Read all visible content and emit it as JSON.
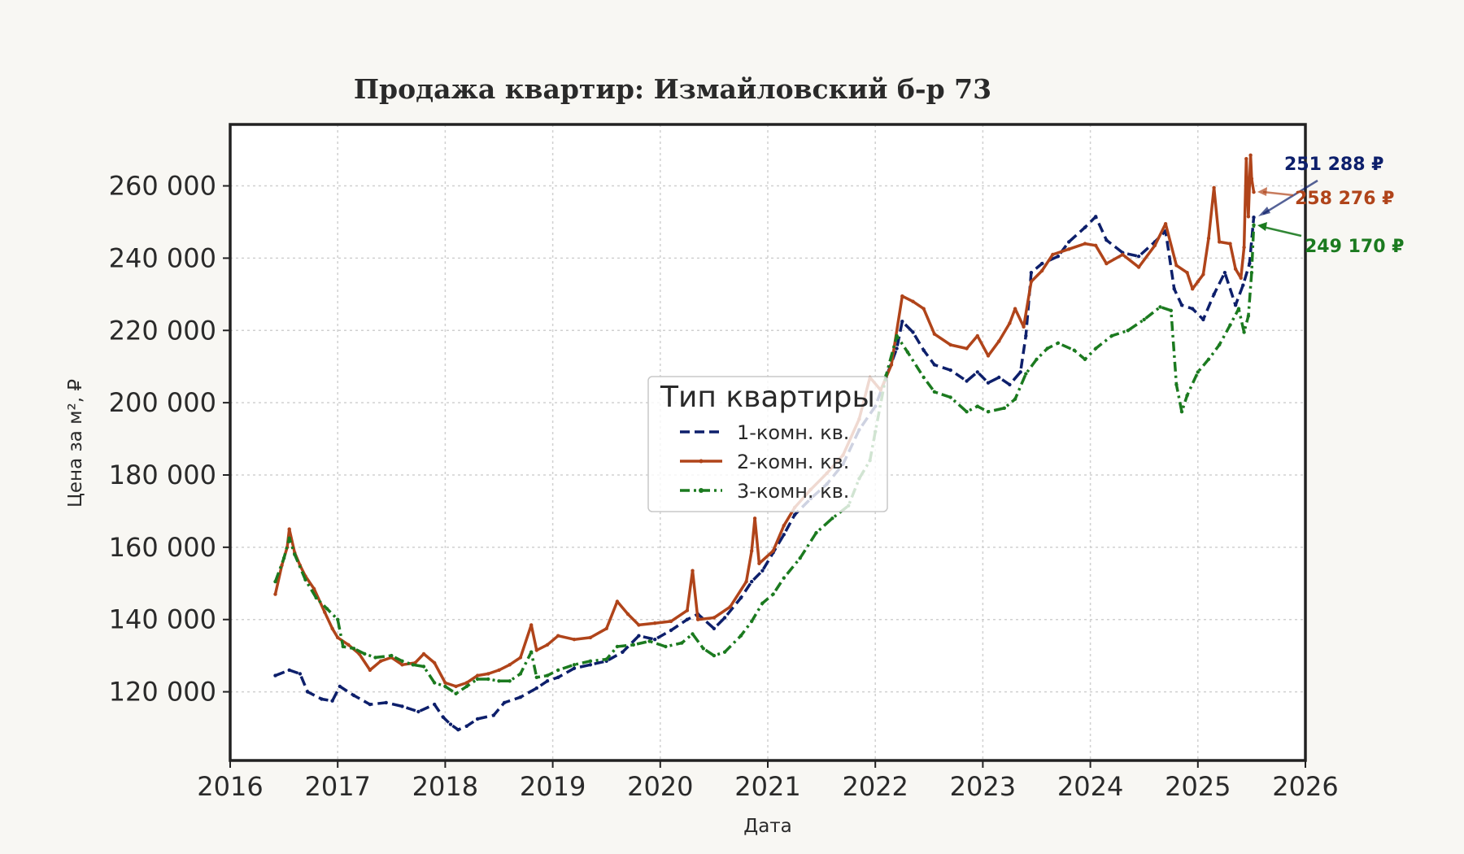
{
  "chart_data": {
    "type": "line",
    "title": "Продажа квартир: Измайловский б-р 73",
    "xlabel": "Дата",
    "ylabel": "Цена за м², ₽",
    "xlim": [
      2016.0,
      2026.0
    ],
    "ylim": [
      101000,
      277000
    ],
    "x_ticks": [
      "2016",
      "2017",
      "2018",
      "2019",
      "2020",
      "2021",
      "2022",
      "2023",
      "2024",
      "2025",
      "2026"
    ],
    "y_ticks": [
      {
        "value": 120000,
        "label": "120 000"
      },
      {
        "value": 140000,
        "label": "140 000"
      },
      {
        "value": 160000,
        "label": "160 000"
      },
      {
        "value": 180000,
        "label": "180 000"
      },
      {
        "value": 200000,
        "label": "200 000"
      },
      {
        "value": 220000,
        "label": "220 000"
      },
      {
        "value": 240000,
        "label": "240 000"
      },
      {
        "value": 260000,
        "label": "260 000"
      }
    ],
    "grid": true,
    "legend": {
      "title": "Тип квартиры",
      "position": "center"
    },
    "series": [
      {
        "name": "1-комн. кв.",
        "color": "#0d1f6b",
        "style": "dashed",
        "points": [
          [
            2016.42,
            124500
          ],
          [
            2016.55,
            126000
          ],
          [
            2016.65,
            125000
          ],
          [
            2016.72,
            120000
          ],
          [
            2016.85,
            118000
          ],
          [
            2016.95,
            117500
          ],
          [
            2017.02,
            121500
          ],
          [
            2017.15,
            119000
          ],
          [
            2017.3,
            116500
          ],
          [
            2017.45,
            117000
          ],
          [
            2017.6,
            116000
          ],
          [
            2017.75,
            114500
          ],
          [
            2017.9,
            116500
          ],
          [
            2017.98,
            113000
          ],
          [
            2018.05,
            111000
          ],
          [
            2018.12,
            109500
          ],
          [
            2018.2,
            110500
          ],
          [
            2018.3,
            112500
          ],
          [
            2018.45,
            113500
          ],
          [
            2018.55,
            117000
          ],
          [
            2018.7,
            118500
          ],
          [
            2018.85,
            121000
          ],
          [
            2018.95,
            123000
          ],
          [
            2019.05,
            124000
          ],
          [
            2019.2,
            126500
          ],
          [
            2019.35,
            127500
          ],
          [
            2019.5,
            128500
          ],
          [
            2019.65,
            131000
          ],
          [
            2019.8,
            135500
          ],
          [
            2019.95,
            134500
          ],
          [
            2020.1,
            137000
          ],
          [
            2020.25,
            140000
          ],
          [
            2020.35,
            141500
          ],
          [
            2020.5,
            137500
          ],
          [
            2020.6,
            140500
          ],
          [
            2020.75,
            146000
          ],
          [
            2020.85,
            150500
          ],
          [
            2020.95,
            153500
          ],
          [
            2021.05,
            158500
          ],
          [
            2021.15,
            163500
          ],
          [
            2021.25,
            169000
          ],
          [
            2021.4,
            173500
          ],
          [
            2021.55,
            177500
          ],
          [
            2021.7,
            183000
          ],
          [
            2021.85,
            192500
          ],
          [
            2022.0,
            199000
          ],
          [
            2022.1,
            207000
          ],
          [
            2022.2,
            215000
          ],
          [
            2022.25,
            222500
          ],
          [
            2022.35,
            219500
          ],
          [
            2022.45,
            214500
          ],
          [
            2022.55,
            210500
          ],
          [
            2022.7,
            209000
          ],
          [
            2022.85,
            206000
          ],
          [
            2022.95,
            208500
          ],
          [
            2023.05,
            205500
          ],
          [
            2023.15,
            207000
          ],
          [
            2023.25,
            205000
          ],
          [
            2023.35,
            208500
          ],
          [
            2023.4,
            218500
          ],
          [
            2023.45,
            236000
          ],
          [
            2023.55,
            238500
          ],
          [
            2023.7,
            240500
          ],
          [
            2023.8,
            244500
          ],
          [
            2023.95,
            248500
          ],
          [
            2024.05,
            251500
          ],
          [
            2024.15,
            245000
          ],
          [
            2024.3,
            241500
          ],
          [
            2024.45,
            240500
          ],
          [
            2024.6,
            244500
          ],
          [
            2024.7,
            247500
          ],
          [
            2024.78,
            231500
          ],
          [
            2024.85,
            227000
          ],
          [
            2024.95,
            226000
          ],
          [
            2025.05,
            223000
          ],
          [
            2025.15,
            230000
          ],
          [
            2025.25,
            236000
          ],
          [
            2025.35,
            227000
          ],
          [
            2025.42,
            232500
          ],
          [
            2025.48,
            238500
          ],
          [
            2025.52,
            251288
          ]
        ]
      },
      {
        "name": "2-комн. кв.",
        "color": "#b0441a",
        "style": "solid",
        "points": [
          [
            2016.42,
            147000
          ],
          [
            2016.48,
            155000
          ],
          [
            2016.53,
            160000
          ],
          [
            2016.55,
            165000
          ],
          [
            2016.6,
            158500
          ],
          [
            2016.65,
            155000
          ],
          [
            2016.7,
            152000
          ],
          [
            2016.78,
            148500
          ],
          [
            2016.88,
            142000
          ],
          [
            2016.95,
            137500
          ],
          [
            2017.0,
            135000
          ],
          [
            2017.1,
            133000
          ],
          [
            2017.2,
            130500
          ],
          [
            2017.3,
            126000
          ],
          [
            2017.4,
            128500
          ],
          [
            2017.5,
            129500
          ],
          [
            2017.6,
            127500
          ],
          [
            2017.72,
            128000
          ],
          [
            2017.8,
            130500
          ],
          [
            2017.9,
            128000
          ],
          [
            2018.0,
            122500
          ],
          [
            2018.1,
            121500
          ],
          [
            2018.2,
            122500
          ],
          [
            2018.3,
            124500
          ],
          [
            2018.4,
            125000
          ],
          [
            2018.5,
            126000
          ],
          [
            2018.6,
            127500
          ],
          [
            2018.7,
            129500
          ],
          [
            2018.8,
            138500
          ],
          [
            2018.85,
            131500
          ],
          [
            2018.95,
            133000
          ],
          [
            2019.05,
            135500
          ],
          [
            2019.2,
            134500
          ],
          [
            2019.35,
            135000
          ],
          [
            2019.5,
            137500
          ],
          [
            2019.6,
            145000
          ],
          [
            2019.7,
            141500
          ],
          [
            2019.8,
            138500
          ],
          [
            2019.95,
            139000
          ],
          [
            2020.1,
            139500
          ],
          [
            2020.25,
            142500
          ],
          [
            2020.3,
            153500
          ],
          [
            2020.35,
            140000
          ],
          [
            2020.5,
            140500
          ],
          [
            2020.65,
            143500
          ],
          [
            2020.8,
            150500
          ],
          [
            2020.85,
            159000
          ],
          [
            2020.88,
            168000
          ],
          [
            2020.92,
            155500
          ],
          [
            2021.05,
            159000
          ],
          [
            2021.15,
            166000
          ],
          [
            2021.25,
            171000
          ],
          [
            2021.4,
            176000
          ],
          [
            2021.55,
            180500
          ],
          [
            2021.7,
            185500
          ],
          [
            2021.85,
            195500
          ],
          [
            2021.95,
            207000
          ],
          [
            2022.05,
            203500
          ],
          [
            2022.15,
            210500
          ],
          [
            2022.25,
            229500
          ],
          [
            2022.35,
            228000
          ],
          [
            2022.45,
            226000
          ],
          [
            2022.55,
            219000
          ],
          [
            2022.7,
            216000
          ],
          [
            2022.85,
            215000
          ],
          [
            2022.95,
            218500
          ],
          [
            2023.05,
            213000
          ],
          [
            2023.15,
            217000
          ],
          [
            2023.25,
            222000
          ],
          [
            2023.3,
            226000
          ],
          [
            2023.38,
            221000
          ],
          [
            2023.45,
            233500
          ],
          [
            2023.55,
            236500
          ],
          [
            2023.65,
            241000
          ],
          [
            2023.8,
            242500
          ],
          [
            2023.95,
            244000
          ],
          [
            2024.05,
            243500
          ],
          [
            2024.15,
            238500
          ],
          [
            2024.3,
            241000
          ],
          [
            2024.45,
            237500
          ],
          [
            2024.6,
            243500
          ],
          [
            2024.7,
            249500
          ],
          [
            2024.8,
            238000
          ],
          [
            2024.9,
            236000
          ],
          [
            2024.95,
            231500
          ],
          [
            2025.0,
            233500
          ],
          [
            2025.05,
            235500
          ],
          [
            2025.1,
            245500
          ],
          [
            2025.15,
            259500
          ],
          [
            2025.2,
            244500
          ],
          [
            2025.3,
            244000
          ],
          [
            2025.35,
            237000
          ],
          [
            2025.4,
            234500
          ],
          [
            2025.43,
            243000
          ],
          [
            2025.45,
            267500
          ],
          [
            2025.47,
            251500
          ],
          [
            2025.49,
            268500
          ],
          [
            2025.5,
            262000
          ],
          [
            2025.52,
            258276
          ]
        ]
      },
      {
        "name": "3-комн. кв.",
        "color": "#1b7a1f",
        "style": "dashdot",
        "points": [
          [
            2016.42,
            150500
          ],
          [
            2016.5,
            157000
          ],
          [
            2016.55,
            162500
          ],
          [
            2016.6,
            158000
          ],
          [
            2016.7,
            151000
          ],
          [
            2016.8,
            146000
          ],
          [
            2016.9,
            143000
          ],
          [
            2017.0,
            140000
          ],
          [
            2017.05,
            132500
          ],
          [
            2017.15,
            132000
          ],
          [
            2017.25,
            130500
          ],
          [
            2017.35,
            129500
          ],
          [
            2017.5,
            130000
          ],
          [
            2017.6,
            128500
          ],
          [
            2017.7,
            127500
          ],
          [
            2017.8,
            127000
          ],
          [
            2017.9,
            122500
          ],
          [
            2018.0,
            121500
          ],
          [
            2018.1,
            119500
          ],
          [
            2018.2,
            121500
          ],
          [
            2018.3,
            123500
          ],
          [
            2018.4,
            123500
          ],
          [
            2018.5,
            123000
          ],
          [
            2018.6,
            123000
          ],
          [
            2018.7,
            125000
          ],
          [
            2018.8,
            131000
          ],
          [
            2018.85,
            124000
          ],
          [
            2018.95,
            124500
          ],
          [
            2019.05,
            126000
          ],
          [
            2019.2,
            127500
          ],
          [
            2019.35,
            128500
          ],
          [
            2019.5,
            129000
          ],
          [
            2019.6,
            132500
          ],
          [
            2019.75,
            133000
          ],
          [
            2019.9,
            134000
          ],
          [
            2020.05,
            132500
          ],
          [
            2020.2,
            133500
          ],
          [
            2020.3,
            136000
          ],
          [
            2020.4,
            132000
          ],
          [
            2020.5,
            130000
          ],
          [
            2020.6,
            131000
          ],
          [
            2020.75,
            135500
          ],
          [
            2020.85,
            139500
          ],
          [
            2020.95,
            144500
          ],
          [
            2021.05,
            147000
          ],
          [
            2021.15,
            151500
          ],
          [
            2021.3,
            157000
          ],
          [
            2021.45,
            164000
          ],
          [
            2021.6,
            168000
          ],
          [
            2021.75,
            171500
          ],
          [
            2021.85,
            179000
          ],
          [
            2021.95,
            184000
          ],
          [
            2022.0,
            192000
          ],
          [
            2022.1,
            207500
          ],
          [
            2022.2,
            218500
          ],
          [
            2022.3,
            214000
          ],
          [
            2022.45,
            207000
          ],
          [
            2022.55,
            203000
          ],
          [
            2022.7,
            201500
          ],
          [
            2022.85,
            197500
          ],
          [
            2022.95,
            199000
          ],
          [
            2023.05,
            197500
          ],
          [
            2023.2,
            198500
          ],
          [
            2023.3,
            201000
          ],
          [
            2023.4,
            208000
          ],
          [
            2023.5,
            212000
          ],
          [
            2023.6,
            215000
          ],
          [
            2023.7,
            216500
          ],
          [
            2023.85,
            214500
          ],
          [
            2023.95,
            212000
          ],
          [
            2024.05,
            215000
          ],
          [
            2024.2,
            218500
          ],
          [
            2024.35,
            220000
          ],
          [
            2024.5,
            223000
          ],
          [
            2024.65,
            226500
          ],
          [
            2024.75,
            225500
          ],
          [
            2024.8,
            205000
          ],
          [
            2024.85,
            197500
          ],
          [
            2024.9,
            202000
          ],
          [
            2025.0,
            208500
          ],
          [
            2025.1,
            212000
          ],
          [
            2025.2,
            216000
          ],
          [
            2025.3,
            221500
          ],
          [
            2025.38,
            226000
          ],
          [
            2025.43,
            219500
          ],
          [
            2025.47,
            224000
          ],
          [
            2025.5,
            236000
          ],
          [
            2025.52,
            249170
          ]
        ]
      }
    ],
    "annotations": [
      {
        "text": "251 288 ₽",
        "series": "1-комн. кв."
      },
      {
        "text": "258 276 ₽",
        "series": "2-комн. кв."
      },
      {
        "text": "249 170 ₽",
        "series": "3-комн. кв."
      }
    ]
  }
}
